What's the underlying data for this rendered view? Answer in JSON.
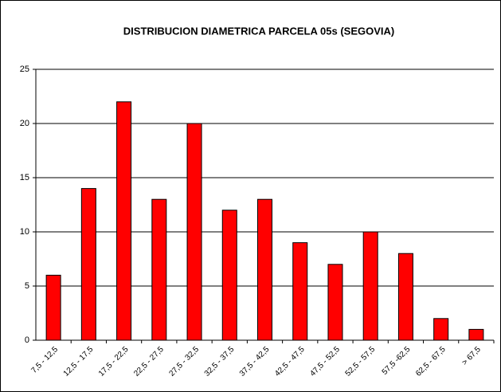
{
  "chart_data": {
    "type": "bar",
    "title": "DISTRIBUCION DIAMETRICA PARCELA 05s (SEGOVIA)",
    "categories": [
      "7,5 - 12,5",
      "12,5 - 17,5",
      "17,5 - 22,5",
      "22,5 - 27,5",
      "27,5 - 32,5",
      "32,5 - 37,5",
      "37,5 - 42,5",
      "42,5 - 47,5",
      "47,5 - 52,5",
      "52,5 - 57,5",
      "57,5 -62,5",
      "62,5 - 67,5",
      "> 67,5"
    ],
    "values": [
      6,
      14,
      22,
      13,
      20,
      12,
      13,
      9,
      7,
      10,
      8,
      2,
      1
    ],
    "color": "#ff0000",
    "ylim": [
      0,
      25
    ],
    "yticks": [
      0,
      5,
      10,
      15,
      20,
      25
    ],
    "grid": true
  }
}
